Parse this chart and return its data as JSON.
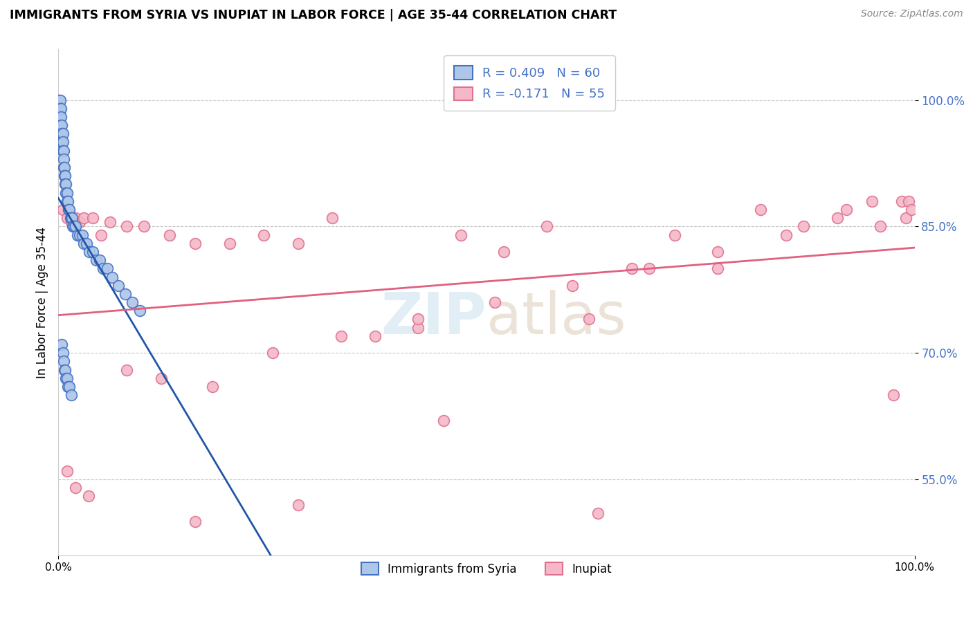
{
  "title": "IMMIGRANTS FROM SYRIA VS INUPIAT IN LABOR FORCE | AGE 35-44 CORRELATION CHART",
  "source": "Source: ZipAtlas.com",
  "ylabel": "In Labor Force | Age 35-44",
  "xlim": [
    0.0,
    1.0
  ],
  "ylim": [
    0.46,
    1.06
  ],
  "yticks": [
    0.55,
    0.7,
    0.85,
    1.0
  ],
  "ytick_labels": [
    "55.0%",
    "70.0%",
    "85.0%",
    "100.0%"
  ],
  "xticks": [
    0.0,
    1.0
  ],
  "xtick_labels": [
    "0.0%",
    "100.0%"
  ],
  "syria_R": 0.409,
  "syria_N": 60,
  "inupiat_R": -0.171,
  "inupiat_N": 55,
  "syria_color": "#aec6e8",
  "syria_edge_color": "#4472c4",
  "inupiat_color": "#f4b8c8",
  "inupiat_edge_color": "#e07090",
  "syria_line_color": "#2255aa",
  "inupiat_line_color": "#e06080",
  "background_color": "#ffffff",
  "watermark_color": "#d0e4f0",
  "tick_label_color": "#4472c4",
  "syria_points_x": [
    0.001,
    0.001,
    0.002,
    0.002,
    0.002,
    0.003,
    0.003,
    0.003,
    0.004,
    0.004,
    0.004,
    0.005,
    0.005,
    0.005,
    0.006,
    0.006,
    0.006,
    0.007,
    0.007,
    0.008,
    0.008,
    0.009,
    0.009,
    0.01,
    0.01,
    0.011,
    0.012,
    0.013,
    0.014,
    0.015,
    0.016,
    0.017,
    0.018,
    0.02,
    0.022,
    0.025,
    0.028,
    0.03,
    0.033,
    0.036,
    0.04,
    0.044,
    0.048,
    0.052,
    0.057,
    0.063,
    0.07,
    0.078,
    0.086,
    0.095,
    0.004,
    0.005,
    0.006,
    0.007,
    0.008,
    0.009,
    0.01,
    0.011,
    0.013,
    0.015
  ],
  "syria_points_y": [
    1.0,
    0.99,
    1.0,
    0.99,
    0.98,
    0.99,
    0.98,
    0.97,
    0.97,
    0.96,
    0.95,
    0.96,
    0.95,
    0.94,
    0.94,
    0.93,
    0.92,
    0.92,
    0.91,
    0.91,
    0.9,
    0.9,
    0.89,
    0.89,
    0.88,
    0.88,
    0.87,
    0.87,
    0.86,
    0.86,
    0.86,
    0.85,
    0.85,
    0.85,
    0.84,
    0.84,
    0.84,
    0.83,
    0.83,
    0.82,
    0.82,
    0.81,
    0.81,
    0.8,
    0.8,
    0.79,
    0.78,
    0.77,
    0.76,
    0.75,
    0.71,
    0.7,
    0.69,
    0.68,
    0.68,
    0.67,
    0.67,
    0.66,
    0.66,
    0.65
  ],
  "inupiat_points_x": [
    0.005,
    0.01,
    0.015,
    0.02,
    0.025,
    0.03,
    0.04,
    0.06,
    0.08,
    0.1,
    0.13,
    0.16,
    0.2,
    0.24,
    0.28,
    0.32,
    0.37,
    0.42,
    0.47,
    0.52,
    0.57,
    0.62,
    0.67,
    0.72,
    0.77,
    0.82,
    0.87,
    0.92,
    0.96,
    0.985,
    0.99,
    0.993,
    0.996,
    0.01,
    0.02,
    0.035,
    0.05,
    0.08,
    0.12,
    0.18,
    0.25,
    0.33,
    0.42,
    0.51,
    0.6,
    0.69,
    0.77,
    0.85,
    0.91,
    0.95,
    0.975,
    0.16,
    0.28,
    0.45,
    0.63
  ],
  "inupiat_points_y": [
    0.87,
    0.86,
    0.855,
    0.86,
    0.855,
    0.86,
    0.86,
    0.855,
    0.85,
    0.85,
    0.84,
    0.83,
    0.83,
    0.84,
    0.83,
    0.86,
    0.72,
    0.73,
    0.84,
    0.82,
    0.85,
    0.74,
    0.8,
    0.84,
    0.8,
    0.87,
    0.85,
    0.87,
    0.85,
    0.88,
    0.86,
    0.88,
    0.87,
    0.56,
    0.54,
    0.53,
    0.84,
    0.68,
    0.67,
    0.66,
    0.7,
    0.72,
    0.74,
    0.76,
    0.78,
    0.8,
    0.82,
    0.84,
    0.86,
    0.88,
    0.65,
    0.5,
    0.52,
    0.62,
    0.51
  ]
}
